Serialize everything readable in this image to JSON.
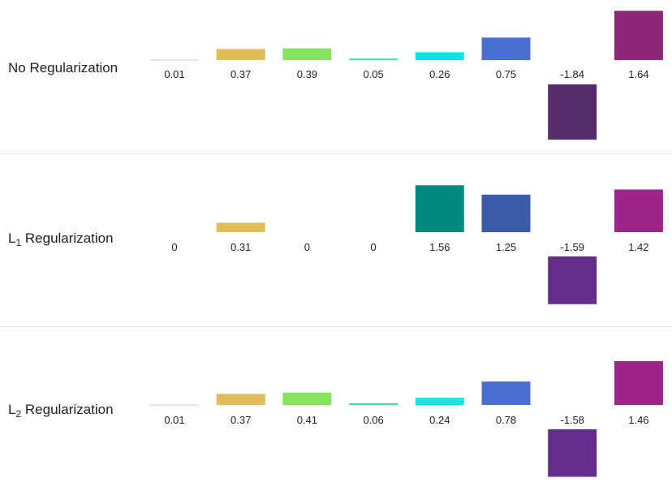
{
  "chart_data": [
    {
      "type": "bar",
      "label_main": "No Regularization",
      "label_sub": "",
      "label_suffix": "",
      "values": [
        0.01,
        0.37,
        0.39,
        0.05,
        0.26,
        0.75,
        -1.84,
        1.64
      ],
      "value_labels": [
        "0.01",
        "0.37",
        "0.39",
        "0.05",
        "0.26",
        "0.75",
        "-1.84",
        "1.64"
      ],
      "colors": [
        "#f4b8c4",
        "#dfbd5a",
        "#86e35f",
        "#3ddfa3",
        "#0fe3de",
        "#4a6fd3",
        "#572d6e",
        "#8d2775"
      ]
    },
    {
      "type": "bar",
      "label_main": "L",
      "label_sub": "1",
      "label_suffix": " Regularization",
      "values": [
        0,
        0.31,
        0,
        0,
        1.56,
        1.25,
        -1.59,
        1.42
      ],
      "value_labels": [
        "0",
        "0.31",
        "0",
        "0",
        "1.56",
        "1.25",
        "-1.59",
        "1.42"
      ],
      "colors": [
        "#f4b8c4",
        "#dfbd5a",
        "#86e35f",
        "#3ddfa3",
        "#008a80",
        "#3b5aa8",
        "#642e8a",
        "#9e2487"
      ]
    },
    {
      "type": "bar",
      "label_main": "L",
      "label_sub": "2",
      "label_suffix": " Regularization",
      "values": [
        0.01,
        0.37,
        0.41,
        0.06,
        0.24,
        0.78,
        -1.58,
        1.46
      ],
      "value_labels": [
        "0.01",
        "0.37",
        "0.41",
        "0.06",
        "0.24",
        "0.78",
        "-1.58",
        "1.46"
      ],
      "colors": [
        "#f4b8c4",
        "#dfbd5a",
        "#86e35f",
        "#3ddfa3",
        "#1ae3dc",
        "#4a6fd3",
        "#662d8c",
        "#9e2487"
      ]
    }
  ]
}
